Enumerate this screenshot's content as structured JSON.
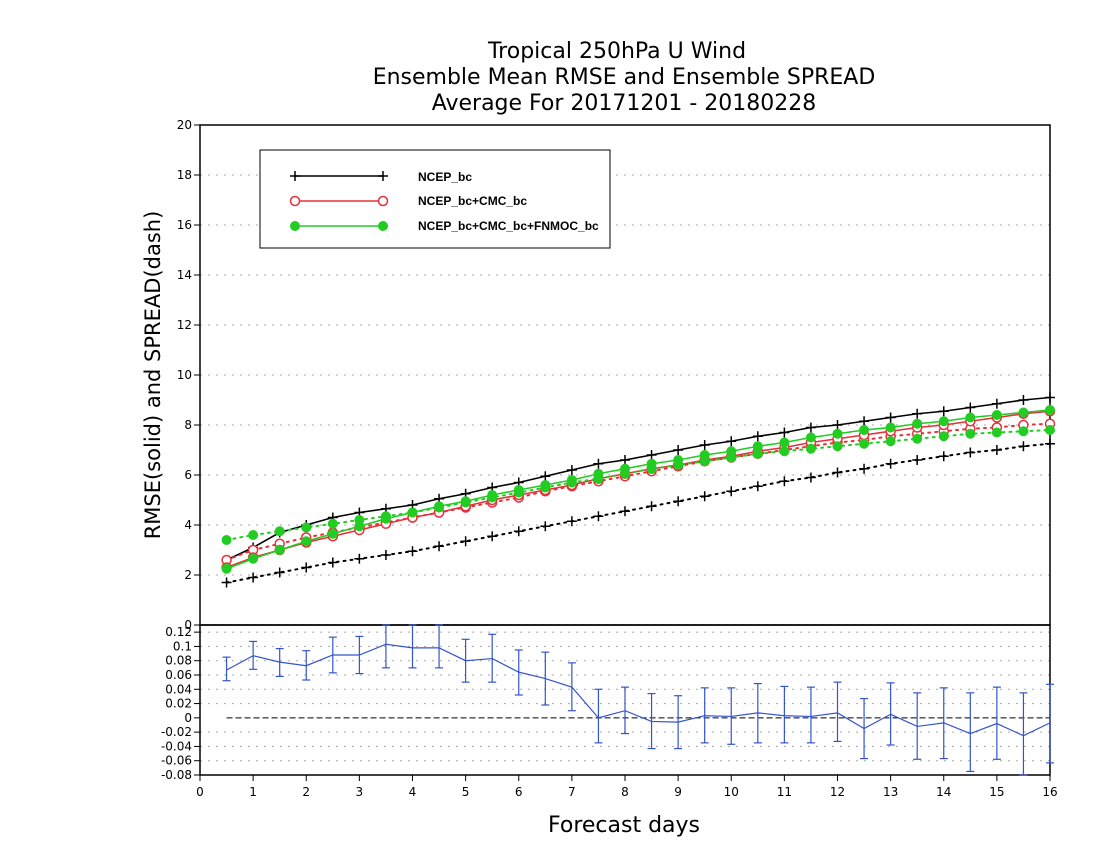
{
  "chart_data": [
    {
      "type": "line",
      "title_lines": [
        "Tropical 250hPa U Wind",
        "Ensemble Mean RMSE and Ensemble SPREAD",
        "Average For 20171201 - 20180228"
      ],
      "ylabel": "RMSE(solid) and SPREAD(dash)",
      "xlabel": "Forecast days",
      "xlim": [
        0,
        16
      ],
      "ylim": [
        0,
        20
      ],
      "x_ticks": [
        "0",
        "1",
        "2",
        "3",
        "4",
        "5",
        "6",
        "7",
        "8",
        "9",
        "10",
        "11",
        "12",
        "13",
        "14",
        "15",
        "16"
      ],
      "y_ticks": [
        "2",
        "4",
        "6",
        "8",
        "10",
        "12",
        "14",
        "16",
        "18",
        "20"
      ],
      "grid": true,
      "legend_position": "top-left",
      "x": [
        0.5,
        1,
        1.5,
        2,
        2.5,
        3,
        3.5,
        4,
        4.5,
        5,
        5.5,
        6,
        6.5,
        7,
        7.5,
        8,
        8.5,
        9,
        9.5,
        10,
        10.5,
        11,
        11.5,
        12,
        12.5,
        13,
        13.5,
        14,
        14.5,
        15,
        15.5,
        16
      ],
      "series": [
        {
          "name": "NCEP_bc",
          "color": "#000000",
          "marker": "plus",
          "rmse": [
            2.6,
            3.1,
            3.7,
            4.0,
            4.3,
            4.5,
            4.65,
            4.8,
            5.05,
            5.25,
            5.5,
            5.7,
            5.95,
            6.2,
            6.45,
            6.6,
            6.8,
            7.0,
            7.2,
            7.35,
            7.55,
            7.7,
            7.9,
            8.0,
            8.15,
            8.3,
            8.45,
            8.55,
            8.7,
            8.85,
            9.0,
            9.1
          ],
          "spread": [
            1.7,
            1.9,
            2.1,
            2.3,
            2.5,
            2.65,
            2.8,
            2.95,
            3.15,
            3.35,
            3.55,
            3.75,
            3.95,
            4.15,
            4.35,
            4.55,
            4.75,
            4.95,
            5.15,
            5.35,
            5.55,
            5.75,
            5.9,
            6.1,
            6.25,
            6.45,
            6.6,
            6.75,
            6.9,
            7.0,
            7.15,
            7.25
          ]
        },
        {
          "name": "NCEP_bc+CMC_bc",
          "color": "#e8303a",
          "marker": "open-circle",
          "rmse": [
            2.3,
            2.7,
            3.0,
            3.3,
            3.55,
            3.8,
            4.05,
            4.3,
            4.5,
            4.75,
            5.0,
            5.2,
            5.4,
            5.6,
            5.85,
            6.05,
            6.25,
            6.4,
            6.6,
            6.75,
            6.95,
            7.1,
            7.3,
            7.45,
            7.6,
            7.75,
            7.9,
            8.0,
            8.15,
            8.3,
            8.45,
            8.55
          ],
          "spread": [
            2.6,
            3.0,
            3.25,
            3.5,
            3.7,
            3.9,
            4.1,
            4.3,
            4.5,
            4.7,
            4.9,
            5.1,
            5.35,
            5.55,
            5.75,
            5.95,
            6.15,
            6.35,
            6.55,
            6.7,
            6.85,
            7.0,
            7.15,
            7.3,
            7.4,
            7.55,
            7.65,
            7.75,
            7.85,
            7.9,
            8.0,
            8.05
          ]
        },
        {
          "name": "NCEP_bc+CMC_bc+FNMOC_bc",
          "color": "#22cc22",
          "marker": "filled-circle",
          "rmse": [
            2.25,
            2.65,
            3.0,
            3.35,
            3.65,
            3.95,
            4.25,
            4.5,
            4.75,
            4.95,
            5.2,
            5.4,
            5.6,
            5.8,
            6.05,
            6.25,
            6.45,
            6.6,
            6.8,
            6.95,
            7.15,
            7.3,
            7.5,
            7.65,
            7.8,
            7.9,
            8.05,
            8.15,
            8.3,
            8.4,
            8.5,
            8.6
          ],
          "spread": [
            3.4,
            3.6,
            3.75,
            3.9,
            4.05,
            4.2,
            4.35,
            4.5,
            4.7,
            4.9,
            5.1,
            5.3,
            5.5,
            5.7,
            5.85,
            6.05,
            6.25,
            6.4,
            6.55,
            6.7,
            6.85,
            6.95,
            7.05,
            7.15,
            7.25,
            7.35,
            7.45,
            7.55,
            7.65,
            7.7,
            7.75,
            7.8
          ]
        }
      ]
    },
    {
      "type": "line",
      "subtype": "difference-with-error-bars",
      "ylim": [
        -0.08,
        0.13
      ],
      "y_ticks": [
        "0.12",
        "0.1",
        "0.08",
        "0.06",
        "0.04",
        "0.02",
        "0",
        "-0.02",
        "-0.04",
        "-0.06",
        "-0.08"
      ],
      "grid": true,
      "zero_line": "dashed",
      "color": "#3355cc",
      "x": [
        0.5,
        1,
        1.5,
        2,
        2.5,
        3,
        3.5,
        4,
        4.5,
        5,
        5.5,
        6,
        6.5,
        7,
        7.5,
        8,
        8.5,
        9,
        9.5,
        10,
        10.5,
        11,
        11.5,
        12,
        12.5,
        13,
        13.5,
        14,
        14.5,
        15,
        15.5,
        16
      ],
      "values": [
        0.067,
        0.087,
        0.078,
        0.073,
        0.088,
        0.088,
        0.103,
        0.098,
        0.098,
        0.08,
        0.083,
        0.064,
        0.055,
        0.043,
        0.0,
        0.01,
        -0.005,
        -0.006,
        0.003,
        0.002,
        0.007,
        0.003,
        0.002,
        0.007,
        -0.015,
        0.005,
        -0.012,
        -0.007,
        -0.022,
        -0.008,
        -0.025,
        -0.007
      ],
      "err_low": [
        0.052,
        0.068,
        0.058,
        0.053,
        0.063,
        0.062,
        0.07,
        0.07,
        0.07,
        0.05,
        0.05,
        0.032,
        0.018,
        0.01,
        -0.035,
        -0.022,
        -0.043,
        -0.043,
        -0.035,
        -0.037,
        -0.035,
        -0.035,
        -0.035,
        -0.033,
        -0.057,
        -0.038,
        -0.058,
        -0.057,
        -0.075,
        -0.058,
        -0.08,
        -0.063
      ],
      "err_high": [
        0.085,
        0.107,
        0.097,
        0.094,
        0.113,
        0.114,
        0.13,
        0.13,
        0.13,
        0.11,
        0.117,
        0.095,
        0.092,
        0.077,
        0.04,
        0.043,
        0.034,
        0.031,
        0.042,
        0.042,
        0.048,
        0.044,
        0.043,
        0.05,
        0.027,
        0.049,
        0.035,
        0.042,
        0.035,
        0.043,
        0.035,
        0.047
      ]
    }
  ],
  "legend": {
    "items": [
      "NCEP_bc",
      "NCEP_bc+CMC_bc",
      "NCEP_bc+CMC_bc+FNMOC_bc"
    ]
  }
}
